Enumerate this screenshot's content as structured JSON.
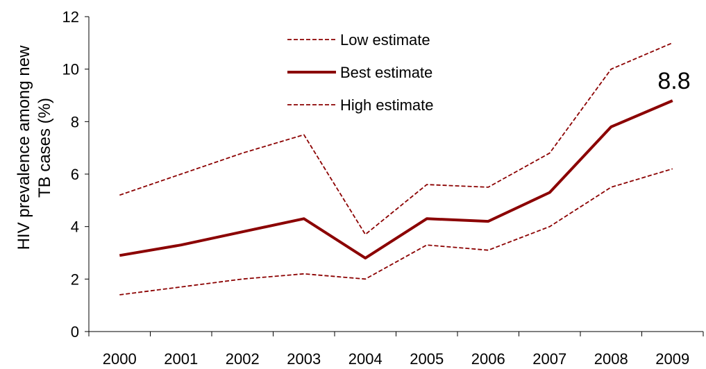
{
  "chart_data": {
    "type": "line",
    "x": [
      "2000",
      "2001",
      "2002",
      "2003",
      "2004",
      "2005",
      "2006",
      "2007",
      "2008",
      "2009"
    ],
    "series": [
      {
        "name": "Low estimate",
        "style": "dashed",
        "color": "#8B0000",
        "values": [
          5.2,
          6.0,
          6.8,
          7.5,
          3.7,
          5.6,
          5.5,
          6.8,
          10.0,
          11.0
        ]
      },
      {
        "name": "Best estimate",
        "style": "solid",
        "color": "#8B0000",
        "values": [
          2.9,
          3.3,
          3.8,
          4.3,
          2.8,
          4.3,
          4.2,
          5.3,
          7.8,
          8.8
        ]
      },
      {
        "name": "High estimate",
        "style": "dashed",
        "color": "#8B0000",
        "values": [
          1.4,
          1.7,
          2.0,
          2.2,
          2.0,
          3.3,
          3.1,
          4.0,
          5.5,
          6.2
        ]
      }
    ],
    "ylabel": "HIV prevalence among new TB cases (%)",
    "ylabel_lines": [
      "HIV prevalence among new",
      "TB cases (%)"
    ],
    "ylim": [
      0,
      12
    ],
    "yticks": [
      "0",
      "2",
      "4",
      "6",
      "8",
      "10",
      "12"
    ],
    "annotation": "8.8",
    "legend_position": "top-center",
    "grid": false
  }
}
